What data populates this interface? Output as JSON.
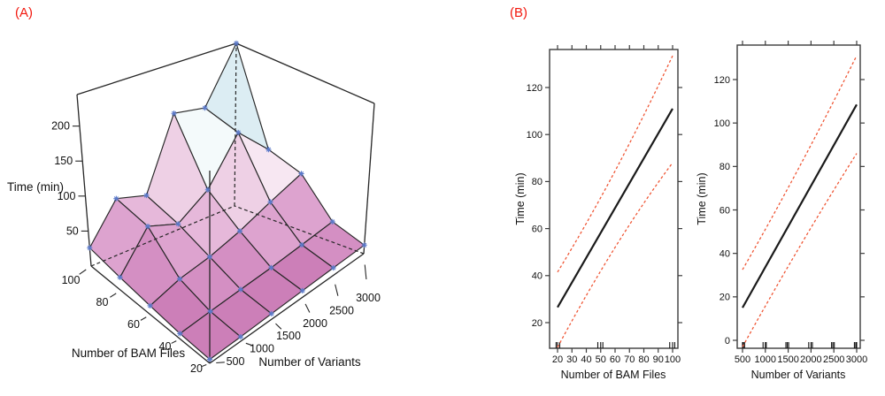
{
  "labels": {
    "panel_a": "(A)",
    "panel_b": "(B)"
  },
  "colors": {
    "panel_label": "#f2190f",
    "fit_line": "#1a1a1a",
    "ci_dashed": "#ef5230",
    "axis": "#3c3c3c",
    "marker": "#5b79c9",
    "surface_edge": "#262626"
  },
  "chart_data": [
    {
      "id": "runtime-surface",
      "type": "surface",
      "title": "",
      "xlabel": "Number of BAM Files",
      "ylabel": "Number of Variants",
      "zlabel": "Time (min)",
      "x": [
        20,
        40,
        60,
        80,
        100
      ],
      "y": [
        500,
        1000,
        1500,
        2000,
        2500,
        3000
      ],
      "z": [
        [
          5,
          6,
          8,
          10,
          12,
          14
        ],
        [
          7,
          11,
          15,
          19,
          25,
          32
        ],
        [
          12,
          26,
          34,
          48,
          68,
          88
        ],
        [
          18,
          70,
          54,
          84,
          150,
          105
        ],
        [
          26,
          80,
          68,
          172,
          164,
          245
        ]
      ],
      "xticks": [
        20,
        40,
        60,
        80,
        100
      ],
      "yticks": [
        500,
        1000,
        1500,
        2000,
        2500,
        3000
      ],
      "zticks": [
        50,
        100,
        150,
        200
      ],
      "zlim": [
        0,
        245
      ],
      "grid": false,
      "palette_breaks": [
        20,
        35,
        55,
        75,
        100,
        135,
        165
      ],
      "palette": [
        "#cc7fb8",
        "#d48fc3",
        "#dda3cf",
        "#e6b8da",
        "#eed0e5",
        "#f7e7f2",
        "#f4fafb",
        "#dcedf3"
      ]
    },
    {
      "id": "term-bam-files",
      "type": "line",
      "title": "",
      "xlabel": "Number of BAM Files",
      "ylabel": "Time (min)",
      "xticks": [
        20,
        30,
        40,
        50,
        60,
        70,
        80,
        90,
        100
      ],
      "yticks": [
        20,
        40,
        60,
        80,
        100,
        120
      ],
      "xlim": [
        14.5,
        103.7
      ],
      "ylim": [
        9.1,
        136.2
      ],
      "grid": false,
      "legend": null,
      "series": [
        {
          "name": "fitted-effect",
          "style": "solid",
          "points": [
            [
              20,
              26.5
            ],
            [
              100,
              111
            ]
          ]
        },
        {
          "name": "upper-ci",
          "style": "dashed",
          "points": [
            [
              20,
              41.5
            ],
            [
              60,
              84.5
            ],
            [
              100,
              133.5
            ]
          ]
        },
        {
          "name": "lower-ci",
          "style": "dashed",
          "points": [
            [
              20,
              9.5
            ],
            [
              60,
              52
            ],
            [
              100,
              88
            ]
          ]
        }
      ],
      "rug": [
        19,
        20,
        21.5,
        48,
        50,
        51.5,
        98,
        100,
        101.5
      ]
    },
    {
      "id": "term-variants",
      "type": "line",
      "title": "",
      "xlabel": "Number of Variants",
      "ylabel": "Time (min)",
      "xticks": [
        500,
        1000,
        1500,
        2000,
        2500,
        3000
      ],
      "yticks": [
        0,
        20,
        40,
        60,
        80,
        100,
        120
      ],
      "xlim": [
        384,
        3078
      ],
      "ylim": [
        -3.7,
        135.9
      ],
      "grid": false,
      "legend": null,
      "series": [
        {
          "name": "fitted-effect",
          "style": "solid",
          "points": [
            [
              500,
              15
            ],
            [
              3000,
              108.5
            ]
          ]
        },
        {
          "name": "upper-ci",
          "style": "dashed",
          "points": [
            [
              500,
              32.5
            ],
            [
              1750,
              80
            ],
            [
              3000,
              131
            ]
          ]
        },
        {
          "name": "lower-ci",
          "style": "dashed",
          "points": [
            [
              500,
              -3
            ],
            [
              1750,
              43
            ],
            [
              3000,
              86
            ]
          ]
        }
      ],
      "rug": [
        500,
        520,
        545,
        950,
        1000,
        1020,
        1450,
        1480,
        1510,
        1950,
        2000,
        2030,
        2450,
        2480,
        2510,
        2950,
        2980,
        3000
      ]
    }
  ]
}
